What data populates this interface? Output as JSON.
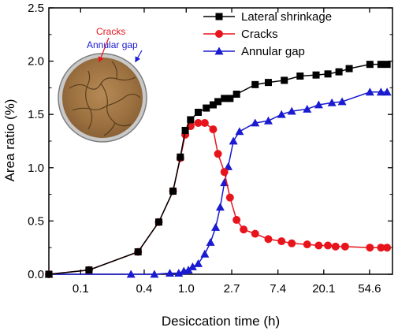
{
  "chart_data": {
    "type": "line",
    "title": "",
    "xlabel": "Desiccation time (h)",
    "ylabel": "Area ratio (%)",
    "x_scale": "log",
    "x_tick_labels": [
      "0.1",
      "0.4",
      "1.0",
      "2.7",
      "7.4",
      "20.1",
      "54.6"
    ],
    "x_tick_values": [
      0.1,
      0.4,
      1.0,
      2.7,
      7.4,
      20.1,
      54.6
    ],
    "xlim": [
      0.05,
      90
    ],
    "y_tick_labels": [
      "0.0",
      "0.5",
      "1.0",
      "1.5",
      "2.0",
      "2.5"
    ],
    "y_tick_values": [
      0,
      0.5,
      1.0,
      1.5,
      2.0,
      2.5
    ],
    "ylim": [
      0,
      2.5
    ],
    "grid": false,
    "legend_position": "top-right",
    "annotations": [
      {
        "text": "Cracks",
        "color": "#e8141c"
      },
      {
        "text": "Annular gap",
        "color": "#1a1ad0"
      }
    ],
    "image_inset": "photo of desiccated soil sample in a circular dish",
    "series": [
      {
        "name": "Lateral shrinkage",
        "color": "#000000",
        "marker": "square",
        "x": [
          0.05,
          0.12,
          0.35,
          0.55,
          0.75,
          0.88,
          0.98,
          1.1,
          1.3,
          1.55,
          1.8,
          2.0,
          2.3,
          2.6,
          3.0,
          4.5,
          6.0,
          8.5,
          12,
          17,
          22,
          28,
          35,
          55,
          70,
          80
        ],
        "values": [
          0.0,
          0.04,
          0.21,
          0.49,
          0.78,
          1.1,
          1.35,
          1.45,
          1.52,
          1.56,
          1.59,
          1.62,
          1.65,
          1.65,
          1.69,
          1.78,
          1.8,
          1.82,
          1.86,
          1.87,
          1.88,
          1.9,
          1.93,
          1.97,
          1.97,
          1.97
        ]
      },
      {
        "name": "Cracks",
        "color": "#e8141c",
        "marker": "circle",
        "x": [
          0.05,
          0.12,
          0.35,
          0.55,
          0.75,
          0.88,
          0.98,
          1.1,
          1.3,
          1.5,
          1.8,
          2.0,
          2.3,
          2.6,
          3.0,
          3.5,
          4.5,
          6.0,
          8.0,
          10,
          14,
          18,
          22,
          26,
          32,
          55,
          70,
          80
        ],
        "values": [
          0.0,
          0.04,
          0.21,
          0.49,
          0.78,
          1.09,
          1.31,
          1.39,
          1.42,
          1.42,
          1.36,
          1.13,
          0.96,
          0.72,
          0.51,
          0.42,
          0.38,
          0.33,
          0.31,
          0.29,
          0.28,
          0.27,
          0.27,
          0.26,
          0.26,
          0.25,
          0.25,
          0.25
        ]
      },
      {
        "name": "Annular gap",
        "color": "#1a1ad0",
        "marker": "triangle",
        "x": [
          0.05,
          0.3,
          0.5,
          0.7,
          0.85,
          0.95,
          1.05,
          1.15,
          1.3,
          1.5,
          1.7,
          1.9,
          2.1,
          2.3,
          2.5,
          2.8,
          3.2,
          4.5,
          6.0,
          8.0,
          10,
          14,
          18,
          24,
          30,
          55,
          70,
          80
        ],
        "values": [
          0.0,
          0.0,
          0.0,
          0.01,
          0.01,
          0.03,
          0.04,
          0.07,
          0.1,
          0.19,
          0.3,
          0.44,
          0.63,
          0.86,
          1.01,
          1.25,
          1.34,
          1.42,
          1.44,
          1.5,
          1.53,
          1.55,
          1.59,
          1.61,
          1.62,
          1.71,
          1.71,
          1.71
        ]
      }
    ]
  }
}
